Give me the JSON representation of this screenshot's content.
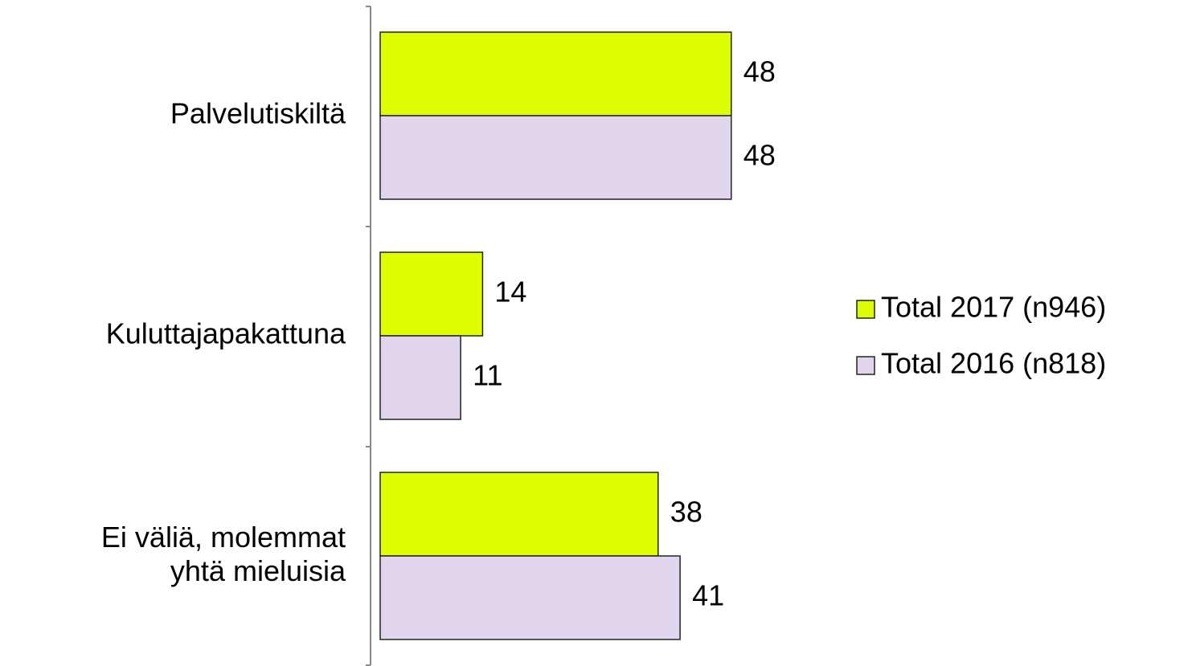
{
  "chart_data": {
    "type": "hbar",
    "categories": [
      "Palvelutiskiltä",
      "Kuluttajapakattuna",
      "Ei väliä,  molemmat\nyhtä mieluisia"
    ],
    "series": [
      {
        "name": "Total 2017 (n946)",
        "color": "#ddff00",
        "values": [
          48,
          14,
          38
        ]
      },
      {
        "name": "Total 2016 (n818)",
        "color": "#e2d6ee",
        "values": [
          48,
          11,
          41
        ]
      }
    ],
    "xlim": [
      0,
      100
    ],
    "legend": "right"
  }
}
